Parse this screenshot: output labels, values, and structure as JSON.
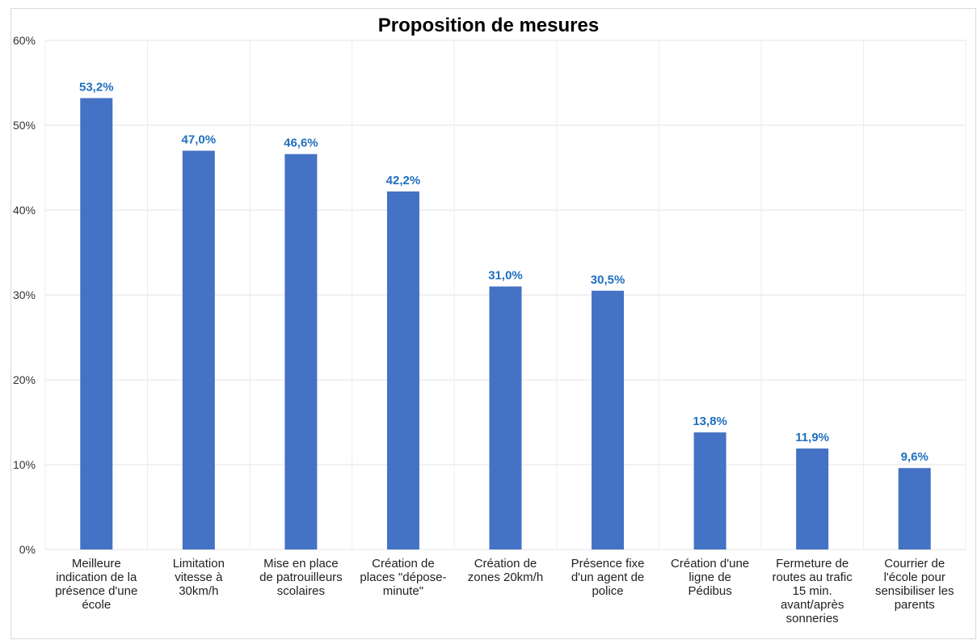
{
  "chart_data": {
    "type": "bar",
    "title": "Proposition de mesures",
    "categories": [
      "Meilleure indication de la présence d'une école",
      "Limitation vitesse à 30km/h",
      "Mise en place de patrouilleurs scolaires",
      "Création de places \"dépose-minute\"",
      "Création de zones 20km/h",
      "Présence fixe d'un agent de police",
      "Création d'une ligne de Pédibus",
      "Fermeture de routes au trafic 15 min. avant/après sonneries",
      "Courrier de l'école pour sensibiliser les parents"
    ],
    "category_lines": [
      [
        "Meilleure",
        "indication de la",
        "présence d'une",
        "école"
      ],
      [
        "Limitation",
        "vitesse à",
        "30km/h"
      ],
      [
        "Mise en place",
        "de patrouilleurs",
        "scolaires"
      ],
      [
        "Création de",
        "places \"dépose-",
        "minute\""
      ],
      [
        "Création de",
        "zones 20km/h"
      ],
      [
        "Présence fixe",
        "d'un agent de",
        "police"
      ],
      [
        "Création d'une",
        "ligne de",
        "Pédibus"
      ],
      [
        "Fermeture de",
        "routes au trafic",
        "15 min.",
        "avant/après",
        "sonneries"
      ],
      [
        "Courrier de",
        "l'école pour",
        "sensibiliser les",
        "parents"
      ]
    ],
    "values": [
      53.2,
      47.0,
      46.6,
      42.2,
      31.0,
      30.5,
      13.8,
      11.9,
      9.6
    ],
    "data_labels": [
      "53,2%",
      "47,0%",
      "46,6%",
      "42,2%",
      "31,0%",
      "30,5%",
      "13,8%",
      "11,9%",
      "9,6%"
    ],
    "ylim": [
      0,
      60
    ],
    "yticks": [
      0,
      10,
      20,
      30,
      40,
      50,
      60
    ],
    "ytick_labels": [
      "0%",
      "10%",
      "20%",
      "30%",
      "40%",
      "50%",
      "60%"
    ],
    "grid": true,
    "legend": "none",
    "bar_color": "#4472c4",
    "label_color": "#1f6fbf",
    "xlabel": "",
    "ylabel": ""
  }
}
